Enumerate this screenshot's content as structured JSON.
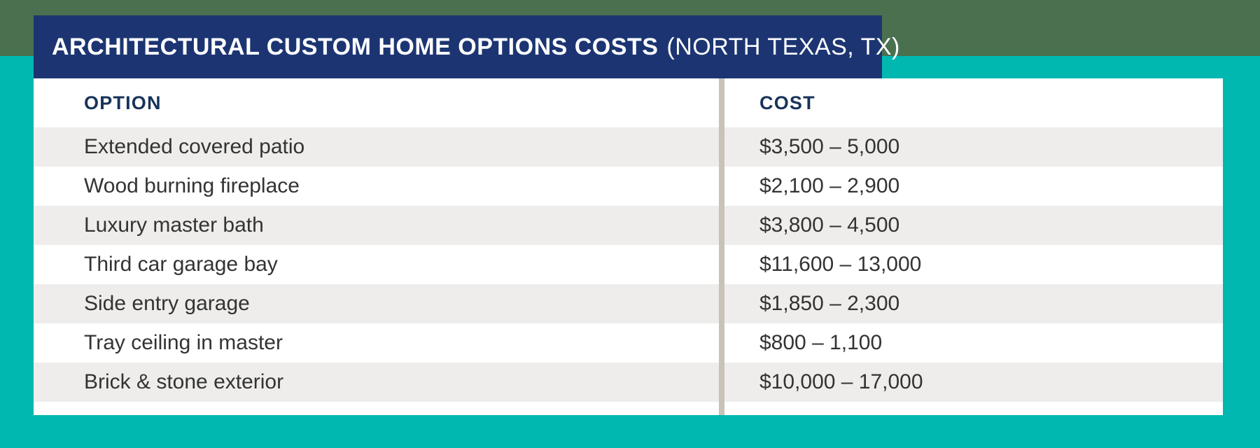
{
  "colors": {
    "teal": "#00b8b0",
    "green": "#4a7050",
    "navy": "#1c3572",
    "header_navy": "#17335a",
    "stripe": "#eeedeb",
    "divider": "#c9c2b9",
    "row_text": "#333333",
    "white": "#ffffff"
  },
  "banner": {
    "title_bold": "ARCHITECTURAL CUSTOM HOME OPTIONS COSTS",
    "title_regular": "(NORTH TEXAS, TX)"
  },
  "table": {
    "columns": [
      {
        "key": "option",
        "label": "OPTION"
      },
      {
        "key": "cost",
        "label": "COST"
      }
    ],
    "rows": [
      {
        "option": "Extended covered patio",
        "cost": "$3,500 – 5,000"
      },
      {
        "option": "Wood burning fireplace",
        "cost": "$2,100 – 2,900"
      },
      {
        "option": "Luxury master bath",
        "cost": "$3,800 – 4,500"
      },
      {
        "option": "Third car garage bay",
        "cost": "$11,600 – 13,000"
      },
      {
        "option": "Side entry garage",
        "cost": "$1,850 – 2,300"
      },
      {
        "option": "Tray ceiling in master",
        "cost": "$800 – 1,100"
      },
      {
        "option": "Brick & stone exterior",
        "cost": "$10,000 – 17,000"
      }
    ]
  },
  "chart_data": {
    "type": "table",
    "title": "ARCHITECTURAL CUSTOM HOME OPTIONS COSTS (NORTH TEXAS, TX)",
    "columns": [
      "OPTION",
      "COST"
    ],
    "rows": [
      [
        "Extended covered patio",
        "$3,500 – 5,000"
      ],
      [
        "Wood burning fireplace",
        "$2,100 – 2,900"
      ],
      [
        "Luxury master bath",
        "$3,800 – 4,500"
      ],
      [
        "Third car garage bay",
        "$11,600 – 13,000"
      ],
      [
        "Side entry garage",
        "$1,850 – 2,300"
      ],
      [
        "Tray ceiling in master",
        "$800 – 1,100"
      ],
      [
        "Brick & stone exterior",
        "$10,000 – 17,000"
      ]
    ],
    "cost_ranges_usd": [
      [
        3500,
        5000
      ],
      [
        2100,
        2900
      ],
      [
        3800,
        4500
      ],
      [
        11600,
        13000
      ],
      [
        1850,
        2300
      ],
      [
        800,
        1100
      ],
      [
        10000,
        17000
      ]
    ],
    "layout_hints": {
      "row_striping": "alternating, first data row shaded",
      "column_divider": "vertical beige bar between columns",
      "grid": false
    }
  }
}
